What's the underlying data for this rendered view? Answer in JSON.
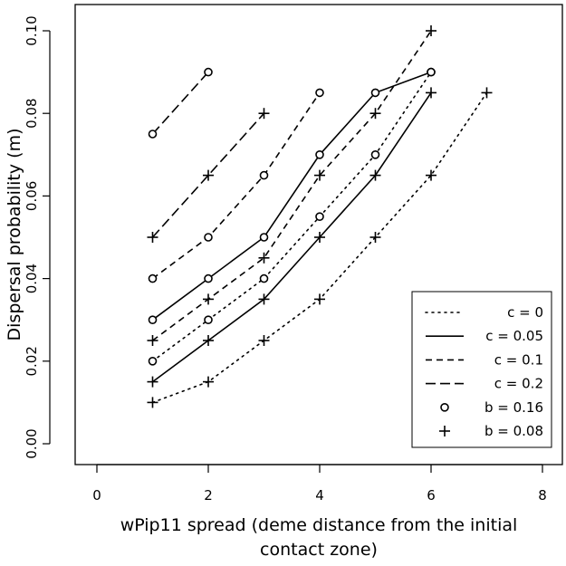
{
  "chart_data": {
    "type": "line",
    "title": "",
    "xlabel_line1": "wPip11 spread (deme distance from the initial",
    "xlabel_line2": "contact zone)",
    "ylabel": "Dispersal probability (m)",
    "xlim": [
      0,
      8
    ],
    "ylim": [
      0,
      0.1
    ],
    "xticks": [
      0,
      2,
      4,
      6,
      8
    ],
    "xtick_labels": [
      "0",
      "2",
      "4",
      "6",
      "8"
    ],
    "yticks": [
      0,
      0.02,
      0.04,
      0.06,
      0.08,
      0.1
    ],
    "ytick_labels": [
      "0.00",
      "0.02",
      "0.04",
      "0.06",
      "0.08",
      "0.10"
    ],
    "grid": false,
    "legend_position": "bottom-right",
    "legend": [
      {
        "label": "c = 0",
        "line": "dotted"
      },
      {
        "label": "c = 0.05",
        "line": "solid"
      },
      {
        "label": "c = 0.1",
        "line": "dashed"
      },
      {
        "label": "c = 0.2",
        "line": "longdash"
      },
      {
        "label": "b = 0.16",
        "marker": "circle"
      },
      {
        "label": "b = 0.08",
        "marker": "plus"
      }
    ],
    "series": [
      {
        "c": 0,
        "b": 0.16,
        "line": "dotted",
        "marker": "circle",
        "x": [
          1,
          2,
          3,
          4,
          5,
          6
        ],
        "y": [
          0.02,
          0.03,
          0.04,
          0.055,
          0.07,
          0.09
        ]
      },
      {
        "c": 0,
        "b": 0.08,
        "line": "dotted",
        "marker": "plus",
        "x": [
          1,
          2,
          3,
          4,
          5,
          6,
          7
        ],
        "y": [
          0.01,
          0.015,
          0.025,
          0.035,
          0.05,
          0.065,
          0.085
        ]
      },
      {
        "c": 0.05,
        "b": 0.16,
        "line": "solid",
        "marker": "circle",
        "x": [
          1,
          2,
          3,
          4,
          5,
          6
        ],
        "y": [
          0.03,
          0.04,
          0.05,
          0.07,
          0.085,
          0.09
        ]
      },
      {
        "c": 0.05,
        "b": 0.08,
        "line": "solid",
        "marker": "plus",
        "x": [
          1,
          2,
          3,
          4,
          5,
          6
        ],
        "y": [
          0.015,
          0.025,
          0.035,
          0.05,
          0.065,
          0.085
        ]
      },
      {
        "c": 0.1,
        "b": 0.16,
        "line": "dashed",
        "marker": "circle",
        "x": [
          1,
          2,
          3,
          4
        ],
        "y": [
          0.04,
          0.05,
          0.065,
          0.085
        ]
      },
      {
        "c": 0.1,
        "b": 0.08,
        "line": "dashed",
        "marker": "plus",
        "x": [
          1,
          2,
          3,
          4,
          5,
          6
        ],
        "y": [
          0.025,
          0.035,
          0.045,
          0.065,
          0.08,
          0.1
        ]
      },
      {
        "c": 0.2,
        "b": 0.16,
        "line": "longdash",
        "marker": "circle",
        "x": [
          1,
          2
        ],
        "y": [
          0.075,
          0.09
        ]
      },
      {
        "c": 0.2,
        "b": 0.08,
        "line": "longdash",
        "marker": "plus",
        "x": [
          1,
          2,
          3
        ],
        "y": [
          0.05,
          0.065,
          0.08
        ]
      }
    ]
  }
}
